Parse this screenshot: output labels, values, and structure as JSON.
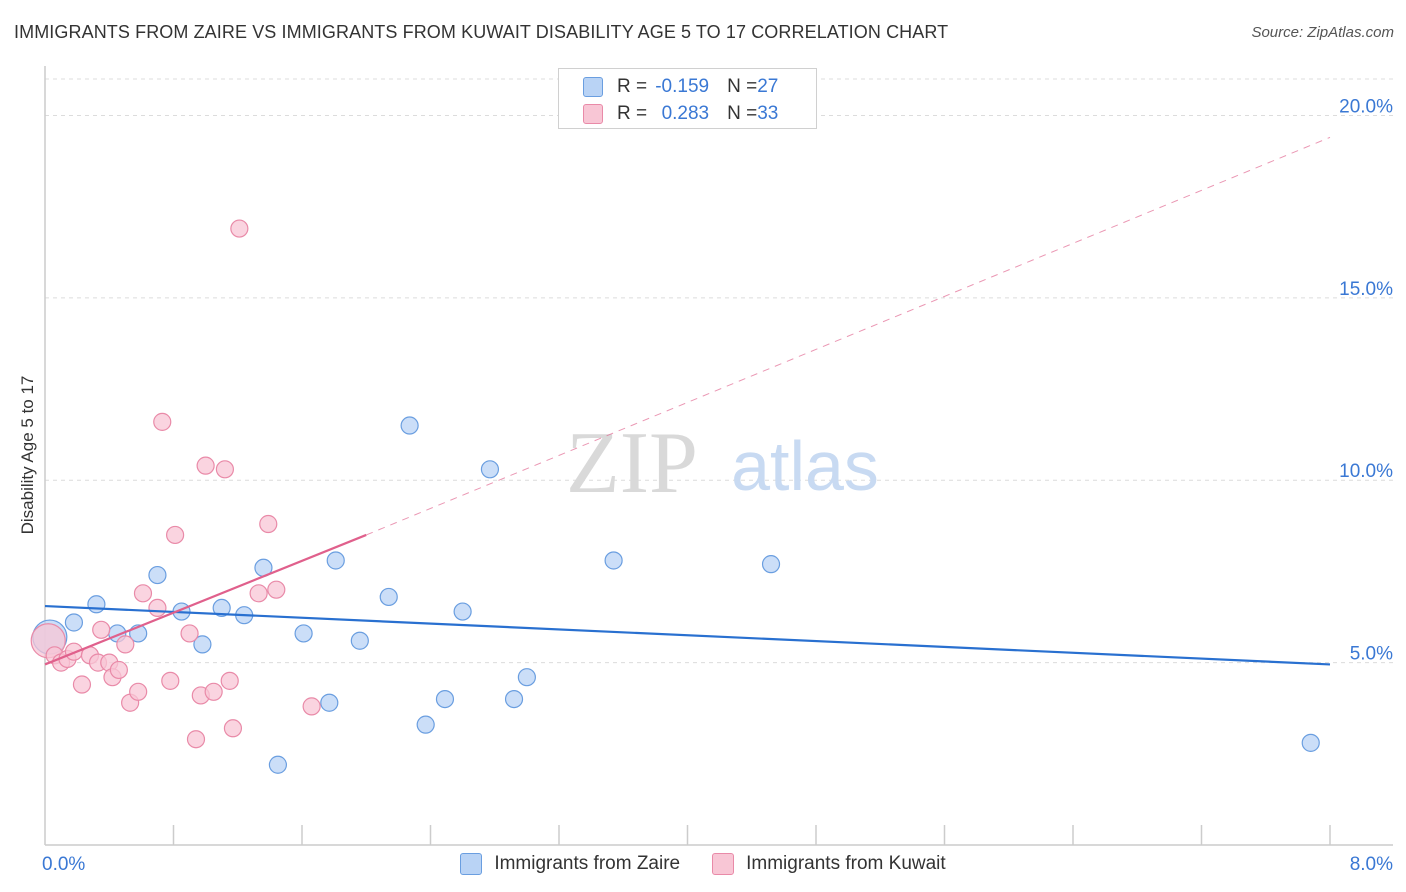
{
  "title": "IMMIGRANTS FROM ZAIRE VS IMMIGRANTS FROM KUWAIT DISABILITY AGE 5 TO 17 CORRELATION CHART",
  "source": "Source: ZipAtlas.com",
  "watermark": {
    "zip": "ZIP",
    "atlas": "atlas"
  },
  "colors": {
    "zaire_fill": "#b9d3f5",
    "zaire_stroke": "#6a9ee0",
    "zaire_line": "#2970d0",
    "kuwait_fill": "#f8c6d5",
    "kuwait_stroke": "#e98aa8",
    "kuwait_line": "#e0608c",
    "axis_text": "#3a78d4",
    "grid": "#dcdcdc"
  },
  "legend": {
    "zaire": {
      "r_label": "R = ",
      "r_value": "-0.159",
      "n_label": "N = ",
      "n_value": "27"
    },
    "kuwait": {
      "r_label": "R = ",
      "r_value": "0.283",
      "n_label": "N = ",
      "n_value": "33"
    }
  },
  "chart_data": {
    "type": "scatter",
    "title": "IMMIGRANTS FROM ZAIRE VS IMMIGRANTS FROM KUWAIT DISABILITY AGE 5 TO 17 CORRELATION CHART",
    "xlabel": "",
    "ylabel": "Disability Age 5 to 17",
    "xlim": [
      0,
      8
    ],
    "ylim": [
      0,
      21
    ],
    "x_tick_labels": [
      {
        "value": 0,
        "label": "0.0%"
      },
      {
        "value": 8,
        "label": "8.0%"
      }
    ],
    "x_minor_ticks": [
      0.8,
      1.6,
      2.4,
      3.2,
      4.0,
      4.8,
      5.6,
      6.4,
      7.2,
      8.0
    ],
    "y_ticks": [
      {
        "value": 5,
        "label": "5.0%"
      },
      {
        "value": 10,
        "label": "10.0%"
      },
      {
        "value": 15,
        "label": "15.0%"
      },
      {
        "value": 20,
        "label": "20.0%"
      }
    ],
    "series": [
      {
        "name": "Immigrants from Zaire",
        "points": [
          {
            "x": 0.03,
            "y": 5.7,
            "big": true
          },
          {
            "x": 0.18,
            "y": 6.1
          },
          {
            "x": 0.32,
            "y": 6.6
          },
          {
            "x": 0.45,
            "y": 5.8
          },
          {
            "x": 0.58,
            "y": 5.8
          },
          {
            "x": 0.7,
            "y": 7.4
          },
          {
            "x": 0.85,
            "y": 6.4
          },
          {
            "x": 0.98,
            "y": 5.5
          },
          {
            "x": 1.1,
            "y": 6.5
          },
          {
            "x": 1.24,
            "y": 6.3
          },
          {
            "x": 1.36,
            "y": 7.6
          },
          {
            "x": 1.45,
            "y": 2.2
          },
          {
            "x": 1.61,
            "y": 5.8
          },
          {
            "x": 1.77,
            "y": 3.9
          },
          {
            "x": 1.81,
            "y": 7.8
          },
          {
            "x": 1.96,
            "y": 5.6
          },
          {
            "x": 2.14,
            "y": 6.8
          },
          {
            "x": 2.27,
            "y": 11.5
          },
          {
            "x": 2.37,
            "y": 3.3
          },
          {
            "x": 2.49,
            "y": 4.0
          },
          {
            "x": 2.6,
            "y": 6.4
          },
          {
            "x": 2.77,
            "y": 10.3
          },
          {
            "x": 2.92,
            "y": 4.0
          },
          {
            "x": 3.0,
            "y": 4.6
          },
          {
            "x": 3.54,
            "y": 7.8
          },
          {
            "x": 4.52,
            "y": 7.7
          },
          {
            "x": 7.88,
            "y": 2.8
          }
        ],
        "trend": {
          "x0": 0,
          "y0": 6.55,
          "x1": 8,
          "y1": 4.95,
          "style": "solid"
        }
      },
      {
        "name": "Immigrants from Kuwait",
        "points": [
          {
            "x": 0.02,
            "y": 5.6,
            "big": true
          },
          {
            "x": 0.06,
            "y": 5.2
          },
          {
            "x": 0.1,
            "y": 5.0
          },
          {
            "x": 0.14,
            "y": 5.1
          },
          {
            "x": 0.18,
            "y": 5.3
          },
          {
            "x": 0.23,
            "y": 4.4
          },
          {
            "x": 0.28,
            "y": 5.2
          },
          {
            "x": 0.33,
            "y": 5.0
          },
          {
            "x": 0.35,
            "y": 5.9
          },
          {
            "x": 0.4,
            "y": 5.0
          },
          {
            "x": 0.42,
            "y": 4.6
          },
          {
            "x": 0.46,
            "y": 4.8
          },
          {
            "x": 0.5,
            "y": 5.5
          },
          {
            "x": 0.53,
            "y": 3.9
          },
          {
            "x": 0.58,
            "y": 4.2
          },
          {
            "x": 0.61,
            "y": 6.9
          },
          {
            "x": 0.7,
            "y": 6.5
          },
          {
            "x": 0.73,
            "y": 11.6
          },
          {
            "x": 0.78,
            "y": 4.5
          },
          {
            "x": 0.81,
            "y": 8.5
          },
          {
            "x": 0.9,
            "y": 5.8
          },
          {
            "x": 0.94,
            "y": 2.9
          },
          {
            "x": 0.97,
            "y": 4.1
          },
          {
            "x": 1.0,
            "y": 10.4
          },
          {
            "x": 1.05,
            "y": 4.2
          },
          {
            "x": 1.12,
            "y": 10.3
          },
          {
            "x": 1.15,
            "y": 4.5
          },
          {
            "x": 1.17,
            "y": 3.2
          },
          {
            "x": 1.21,
            "y": 16.9
          },
          {
            "x": 1.33,
            "y": 6.9
          },
          {
            "x": 1.39,
            "y": 8.8
          },
          {
            "x": 1.44,
            "y": 7.0
          },
          {
            "x": 1.66,
            "y": 3.8
          }
        ],
        "trend": {
          "x0": 0,
          "y0": 4.95,
          "x1": 2.0,
          "y1": 8.5,
          "style": "solid",
          "extended": {
            "x1": 8.0,
            "y1": 19.4,
            "style": "dashed"
          }
        }
      }
    ]
  },
  "bottom_legend": [
    {
      "key": "zaire",
      "label": "Immigrants from Zaire"
    },
    {
      "key": "kuwait",
      "label": "Immigrants from Kuwait"
    }
  ]
}
